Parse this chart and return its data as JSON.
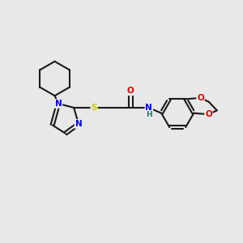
{
  "background_color": "#e8e8e8",
  "bond_color": "#1a1a1a",
  "N_color": "#0000dd",
  "S_color": "#cccc00",
  "O_color": "#dd0000",
  "H_color": "#2a7070",
  "figsize": [
    3.0,
    3.0
  ],
  "dpi": 100,
  "xlim": [
    0,
    10
  ],
  "ylim": [
    0,
    10
  ]
}
